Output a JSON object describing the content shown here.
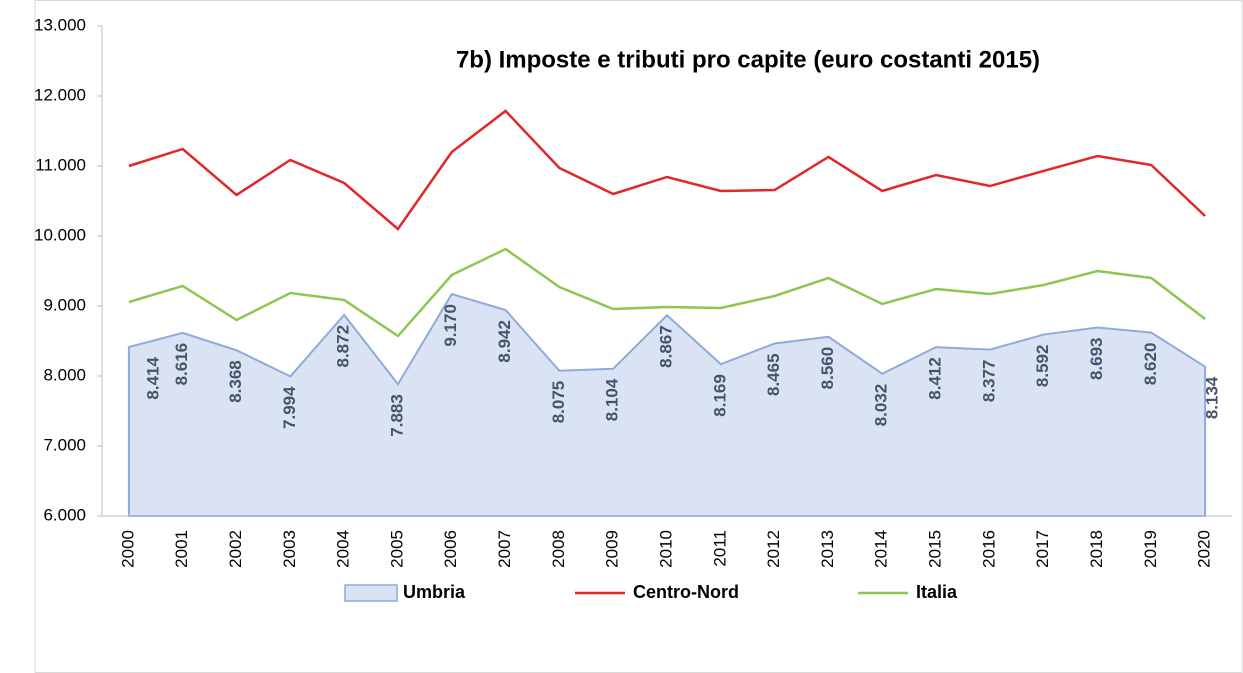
{
  "chart_data": {
    "type": "line",
    "title": "7b) Imposte e tributi pro capite (euro costanti 2015)",
    "categories": [
      "2000",
      "2001",
      "2002",
      "2003",
      "2004",
      "2005",
      "2006",
      "2007",
      "2008",
      "2009",
      "2010",
      "2011",
      "2012",
      "2013",
      "2014",
      "2015",
      "2016",
      "2017",
      "2018",
      "2019",
      "2020"
    ],
    "series": [
      {
        "name": "Umbria",
        "color": "#8faadc",
        "fill": "#dae3f3",
        "style": "area",
        "values": [
          8414,
          8616,
          8368,
          7994,
          8872,
          7883,
          9170,
          8942,
          8075,
          8104,
          8867,
          8169,
          8465,
          8560,
          8032,
          8412,
          8377,
          8592,
          8693,
          8620,
          8134
        ],
        "value_labels": [
          "8.414",
          "8.616",
          "8.368",
          "7.994",
          "8.872",
          "7.883",
          "9.170",
          "8.942",
          "8.075",
          "8.104",
          "8.867",
          "8.169",
          "8.465",
          "8.560",
          "8.032",
          "8.412",
          "8.377",
          "8.592",
          "8.693",
          "8.620",
          "8.134"
        ]
      },
      {
        "name": "Centro-Nord",
        "color": "#e32626",
        "style": "line",
        "values": [
          11000,
          11243,
          10586,
          11086,
          10757,
          10100,
          11200,
          11786,
          10971,
          10600,
          10843,
          10643,
          10657,
          11129,
          10643,
          10871,
          10714,
          10929,
          11143,
          11014,
          10286
        ]
      },
      {
        "name": "Italia",
        "color": "#8cc751",
        "style": "line",
        "values": [
          9057,
          9286,
          8800,
          9186,
          9086,
          8571,
          9443,
          9814,
          9271,
          8957,
          8986,
          8971,
          9143,
          9400,
          9029,
          9243,
          9171,
          9300,
          9500,
          9400,
          8814
        ]
      }
    ],
    "ylim": [
      6000,
      13000
    ],
    "yticks": [
      {
        "value": 6000,
        "label": "6.000"
      },
      {
        "value": 7000,
        "label": "7.000"
      },
      {
        "value": 8000,
        "label": "8.000"
      },
      {
        "value": 9000,
        "label": "9.000"
      },
      {
        "value": 10000,
        "label": "10.000"
      },
      {
        "value": 11000,
        "label": "11.000"
      },
      {
        "value": 12000,
        "label": "12.000"
      },
      {
        "value": 13000,
        "label": "13.000"
      }
    ],
    "legend": "bottom"
  }
}
